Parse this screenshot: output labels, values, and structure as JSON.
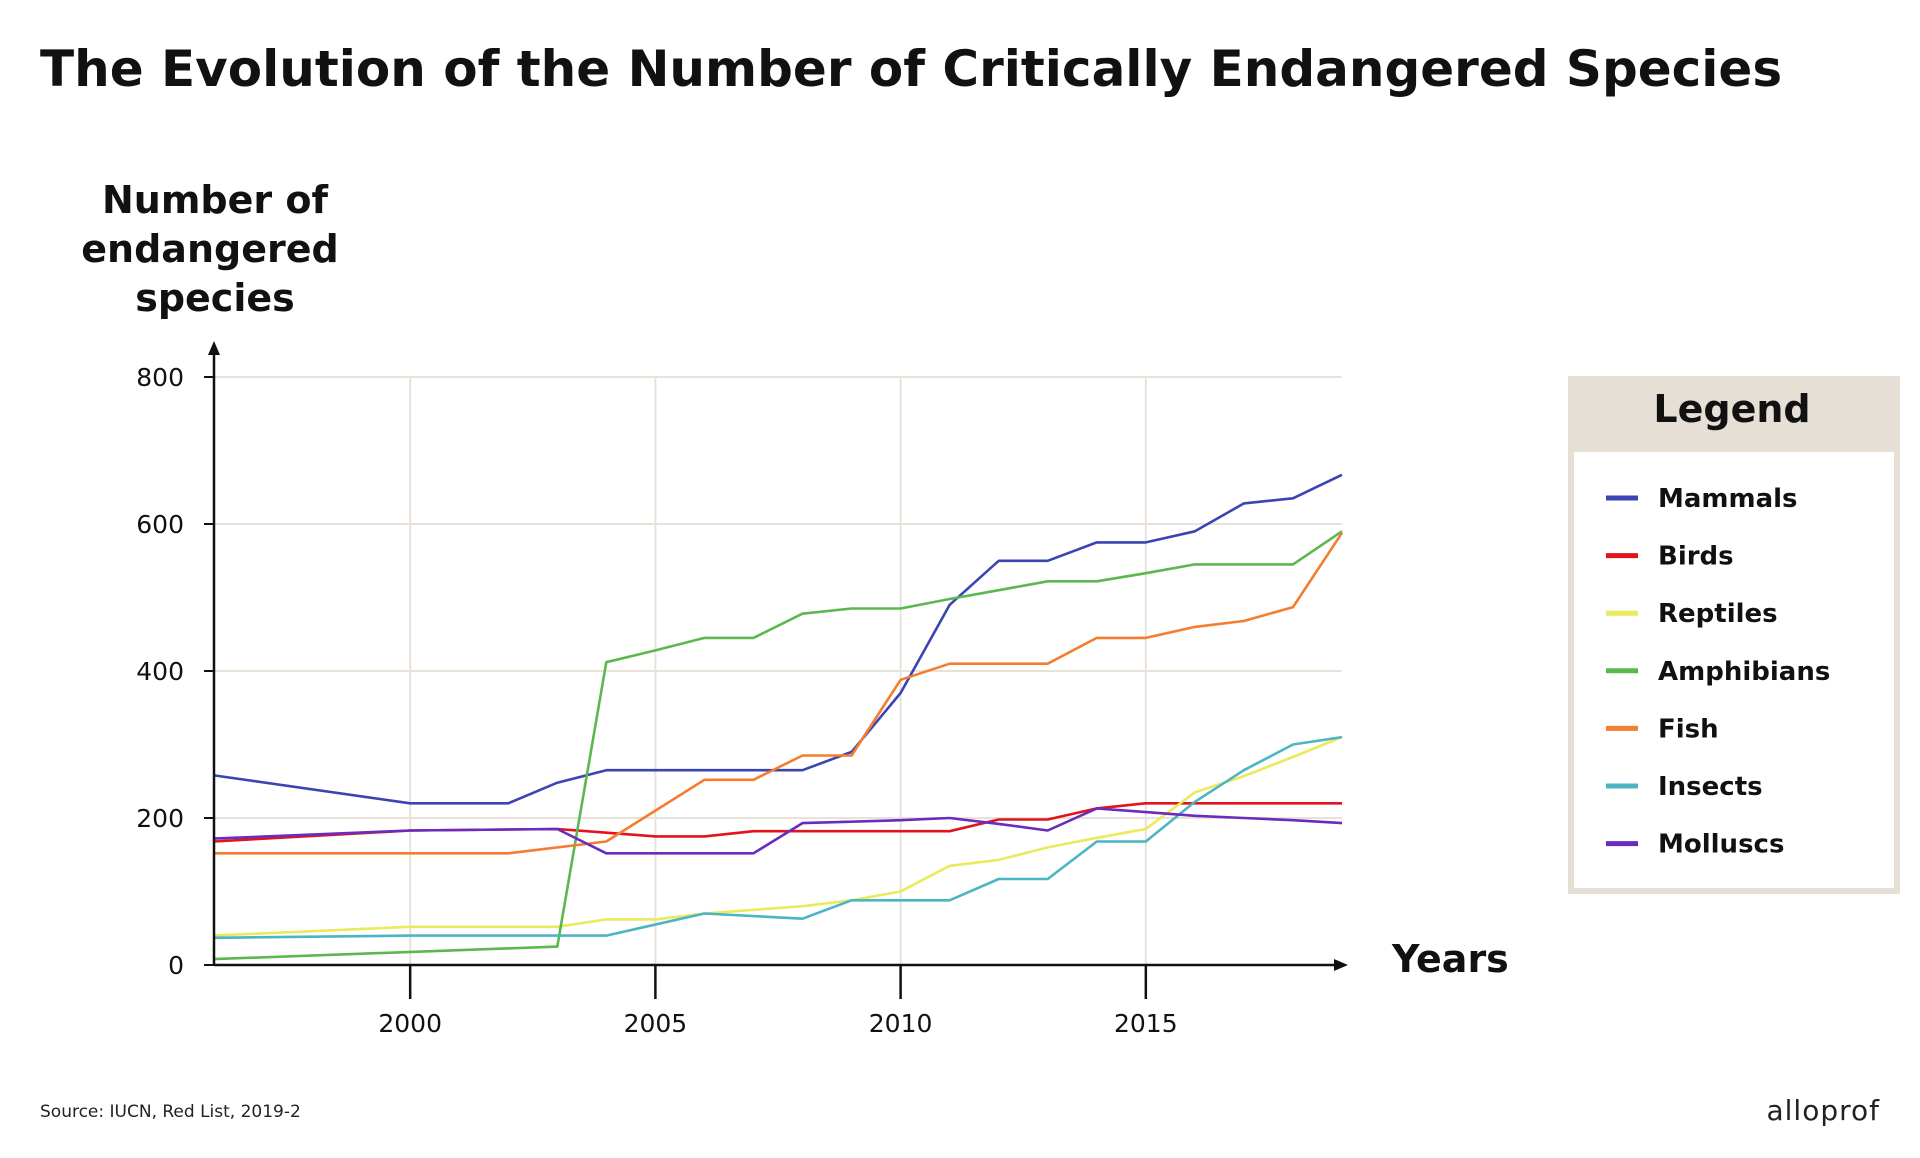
{
  "source": "Source: IUCN, Red List, 2019-2",
  "logo": "alloprof",
  "legend": {
    "title": "Legend"
  },
  "chart_data": {
    "type": "line",
    "title": "The Evolution of the Number of Critically Endangered Species",
    "ylabel": [
      "Number of",
      "endangered",
      "species"
    ],
    "xlabel": "Years",
    "xlim": [
      1996,
      2019
    ],
    "ylim": [
      0,
      800
    ],
    "xticks": [
      2000,
      2005,
      2010,
      2015
    ],
    "yticks": [
      0,
      200,
      400,
      600,
      800
    ],
    "grid": true,
    "legend_position": "right",
    "series": [
      {
        "name": "Mammals",
        "color": "#3a45b3",
        "x": [
          1996,
          2000,
          2002,
          2003,
          2004,
          2005,
          2006,
          2007,
          2008,
          2009,
          2010,
          2011,
          2012,
          2013,
          2014,
          2015,
          2016,
          2017,
          2018,
          2019
        ],
        "y": [
          258,
          220,
          220,
          248,
          265,
          265,
          265,
          265,
          265,
          290,
          370,
          490,
          550,
          550,
          575,
          575,
          590,
          628,
          635,
          667
        ]
      },
      {
        "name": "Birds",
        "color": "#e0141c",
        "x": [
          1996,
          2000,
          2003,
          2004,
          2005,
          2006,
          2007,
          2008,
          2009,
          2010,
          2011,
          2012,
          2013,
          2014,
          2015,
          2016,
          2017,
          2018,
          2019
        ],
        "y": [
          168,
          183,
          185,
          180,
          175,
          175,
          182,
          182,
          182,
          182,
          182,
          198,
          198,
          213,
          220,
          220,
          220,
          220,
          220
        ]
      },
      {
        "name": "Reptiles",
        "color": "#eaea5c",
        "x": [
          1996,
          2000,
          2003,
          2004,
          2005,
          2006,
          2008,
          2009,
          2010,
          2011,
          2012,
          2013,
          2014,
          2015,
          2016,
          2017,
          2018,
          2019
        ],
        "y": [
          40,
          52,
          52,
          62,
          62,
          70,
          80,
          88,
          100,
          135,
          143,
          160,
          173,
          185,
          235,
          257,
          283,
          310
        ]
      },
      {
        "name": "Amphibians",
        "color": "#5ab84e",
        "x": [
          1996,
          2003,
          2004,
          2005,
          2006,
          2007,
          2008,
          2009,
          2010,
          2011,
          2012,
          2013,
          2014,
          2015,
          2016,
          2017,
          2018,
          2019
        ],
        "y": [
          8,
          25,
          412,
          428,
          445,
          445,
          478,
          485,
          485,
          498,
          510,
          522,
          522,
          533,
          545,
          545,
          545,
          590
        ]
      },
      {
        "name": "Fish",
        "color": "#f47d2f",
        "x": [
          1996,
          2000,
          2002,
          2004,
          2005,
          2006,
          2007,
          2008,
          2009,
          2010,
          2011,
          2012,
          2013,
          2014,
          2015,
          2016,
          2017,
          2018,
          2019
        ],
        "y": [
          152,
          152,
          152,
          168,
          210,
          252,
          252,
          285,
          285,
          388,
          410,
          410,
          410,
          445,
          445,
          460,
          468,
          487,
          588
        ]
      },
      {
        "name": "Insects",
        "color": "#4bb5c3",
        "x": [
          1996,
          2000,
          2003,
          2004,
          2006,
          2008,
          2009,
          2010,
          2011,
          2012,
          2013,
          2014,
          2015,
          2016,
          2017,
          2018,
          2019
        ],
        "y": [
          37,
          40,
          40,
          40,
          70,
          63,
          88,
          88,
          88,
          117,
          117,
          168,
          168,
          222,
          265,
          300,
          310
        ]
      },
      {
        "name": "Molluscs",
        "color": "#6a2bbf",
        "x": [
          1996,
          2000,
          2003,
          2004,
          2005,
          2006,
          2007,
          2008,
          2009,
          2010,
          2011,
          2012,
          2013,
          2014,
          2015,
          2016,
          2017,
          2018,
          2019
        ],
        "y": [
          172,
          183,
          185,
          152,
          152,
          152,
          152,
          193,
          195,
          197,
          200,
          192,
          183,
          213,
          208,
          203,
          200,
          197,
          193
        ]
      }
    ]
  }
}
